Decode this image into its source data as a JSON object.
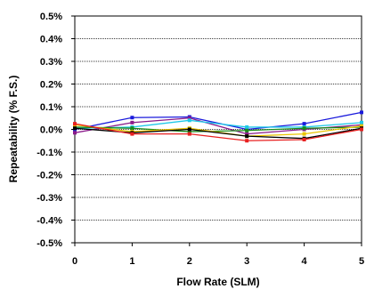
{
  "chart_data": {
    "type": "line",
    "title": "",
    "xlabel": "Flow Rate (SLM)",
    "ylabel": "Repeatability (% F.S.)",
    "x": [
      0,
      1,
      2,
      3,
      4,
      5
    ],
    "xlim": [
      0,
      5
    ],
    "ylim": [
      -0.5,
      0.5
    ],
    "x_ticks": [
      "0",
      "1",
      "2",
      "3",
      "4",
      "5"
    ],
    "y_ticks": [
      "0.5%",
      "0.4%",
      "0.3%",
      "0.2%",
      "0.1%",
      "0.0%",
      "-0.1%",
      "-0.2%",
      "-0.3%",
      "-0.4%",
      "-0.5%"
    ],
    "y_tick_values": [
      0.5,
      0.4,
      0.3,
      0.2,
      0.1,
      0.0,
      -0.1,
      -0.2,
      -0.3,
      -0.4,
      -0.5
    ],
    "grid": "horizontal",
    "legend": "none",
    "series": [
      {
        "color": "#1a1adc",
        "values": [
          0.0,
          0.052,
          0.055,
          0.0,
          0.025,
          0.075
        ]
      },
      {
        "color": "#8a1a8a",
        "values": [
          -0.015,
          0.03,
          0.05,
          -0.02,
          0.0,
          0.02
        ]
      },
      {
        "color": "#20c8e8",
        "values": [
          0.005,
          0.01,
          0.04,
          0.01,
          0.01,
          0.03
        ]
      },
      {
        "color": "#1a8a1a",
        "values": [
          0.01,
          0.005,
          -0.01,
          -0.005,
          0.005,
          0.01
        ]
      },
      {
        "color": "#e8c400",
        "values": [
          0.02,
          -0.01,
          0.005,
          -0.03,
          -0.02,
          0.015
        ]
      },
      {
        "color": "#000000",
        "values": [
          0.005,
          -0.015,
          0.0,
          -0.03,
          -0.04,
          0.005
        ]
      },
      {
        "color": "#e82020",
        "values": [
          0.025,
          -0.02,
          -0.02,
          -0.05,
          -0.045,
          0.0
        ]
      }
    ]
  }
}
